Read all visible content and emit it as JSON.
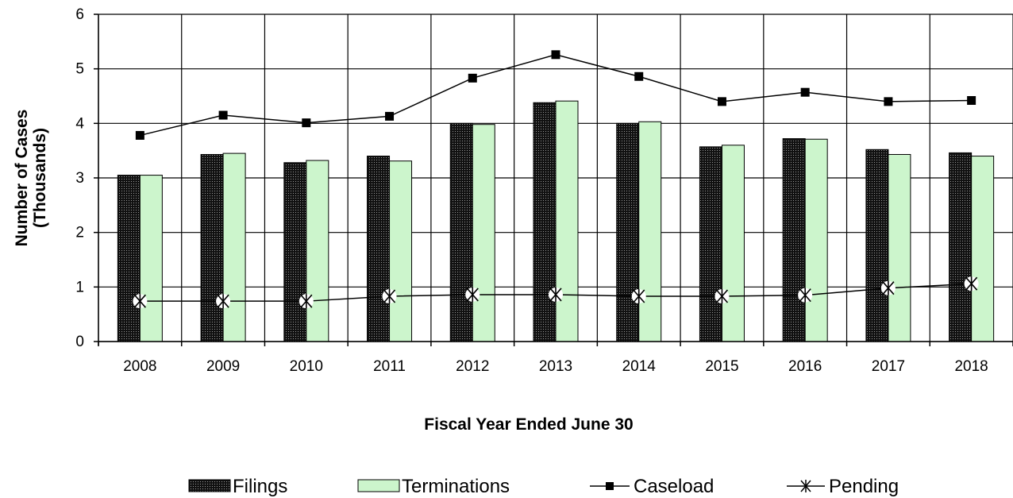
{
  "chart_data": {
    "type": "bar",
    "title": "",
    "xlabel": "Fiscal Year Ended June 30",
    "ylabel_line1": "Number of Cases",
    "ylabel_line2": "(Thousands)",
    "ylim": [
      0,
      6
    ],
    "yticks": [
      0,
      1,
      2,
      3,
      4,
      5,
      6
    ],
    "grid": true,
    "legend_position": "bottom",
    "categories": [
      "2008",
      "2009",
      "2010",
      "2011",
      "2012",
      "2013",
      "2014",
      "2015",
      "2016",
      "2017",
      "2018"
    ],
    "series": [
      {
        "name": "Filings",
        "kind": "bar",
        "color": "#1a1a1a",
        "values": [
          3.05,
          3.43,
          3.28,
          3.4,
          4.0,
          4.38,
          4.0,
          3.57,
          3.72,
          3.52,
          3.46
        ]
      },
      {
        "name": "Terminations",
        "kind": "bar",
        "color": "#ccf5cc",
        "values": [
          3.05,
          3.45,
          3.32,
          3.31,
          3.98,
          4.41,
          4.03,
          3.6,
          3.71,
          3.43,
          3.4
        ]
      },
      {
        "name": "Caseload",
        "kind": "line",
        "marker": "square",
        "color": "#000000",
        "values": [
          3.78,
          4.15,
          4.01,
          4.13,
          4.83,
          5.26,
          4.86,
          4.4,
          4.57,
          4.4,
          4.42
        ]
      },
      {
        "name": "Pending",
        "kind": "line",
        "marker": "asterisk",
        "color": "#000000",
        "values": [
          0.74,
          0.74,
          0.74,
          0.83,
          0.86,
          0.86,
          0.83,
          0.83,
          0.85,
          0.98,
          1.06
        ]
      }
    ]
  }
}
